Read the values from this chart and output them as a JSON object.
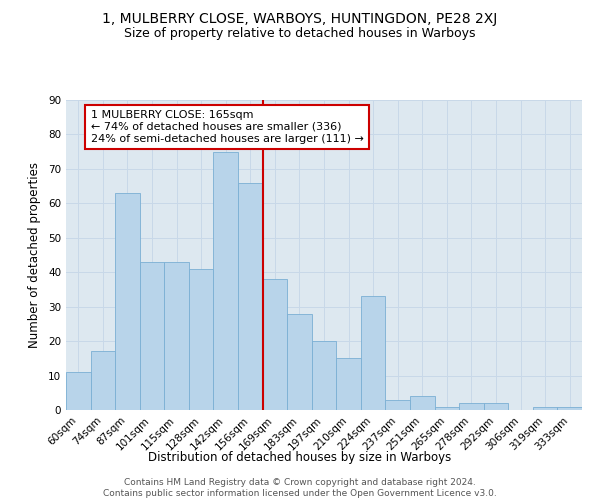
{
  "title": "1, MULBERRY CLOSE, WARBOYS, HUNTINGDON, PE28 2XJ",
  "subtitle": "Size of property relative to detached houses in Warboys",
  "xlabel": "Distribution of detached houses by size in Warboys",
  "ylabel": "Number of detached properties",
  "categories": [
    "60sqm",
    "74sqm",
    "87sqm",
    "101sqm",
    "115sqm",
    "128sqm",
    "142sqm",
    "156sqm",
    "169sqm",
    "183sqm",
    "197sqm",
    "210sqm",
    "224sqm",
    "237sqm",
    "251sqm",
    "265sqm",
    "278sqm",
    "292sqm",
    "306sqm",
    "319sqm",
    "333sqm"
  ],
  "values": [
    11,
    17,
    63,
    43,
    43,
    41,
    75,
    66,
    38,
    28,
    20,
    15,
    33,
    3,
    4,
    1,
    2,
    2,
    0,
    1,
    1
  ],
  "bar_color": "#b8d4ea",
  "bar_edge_color": "#7aafd4",
  "subject_line_index": 8,
  "subject_label": "1 MULBERRY CLOSE: 165sqm",
  "annotation_line1": "← 74% of detached houses are smaller (336)",
  "annotation_line2": "24% of semi-detached houses are larger (111) →",
  "annotation_box_facecolor": "#ffffff",
  "annotation_box_edgecolor": "#cc0000",
  "vline_color": "#cc0000",
  "ylim": [
    0,
    90
  ],
  "yticks": [
    0,
    10,
    20,
    30,
    40,
    50,
    60,
    70,
    80,
    90
  ],
  "grid_color": "#c8d8e8",
  "bg_color": "#dde8f0",
  "footer": "Contains HM Land Registry data © Crown copyright and database right 2024.\nContains public sector information licensed under the Open Government Licence v3.0.",
  "title_fontsize": 10,
  "subtitle_fontsize": 9,
  "axis_label_fontsize": 8.5,
  "tick_fontsize": 7.5,
  "annotation_fontsize": 8,
  "footer_fontsize": 6.5
}
